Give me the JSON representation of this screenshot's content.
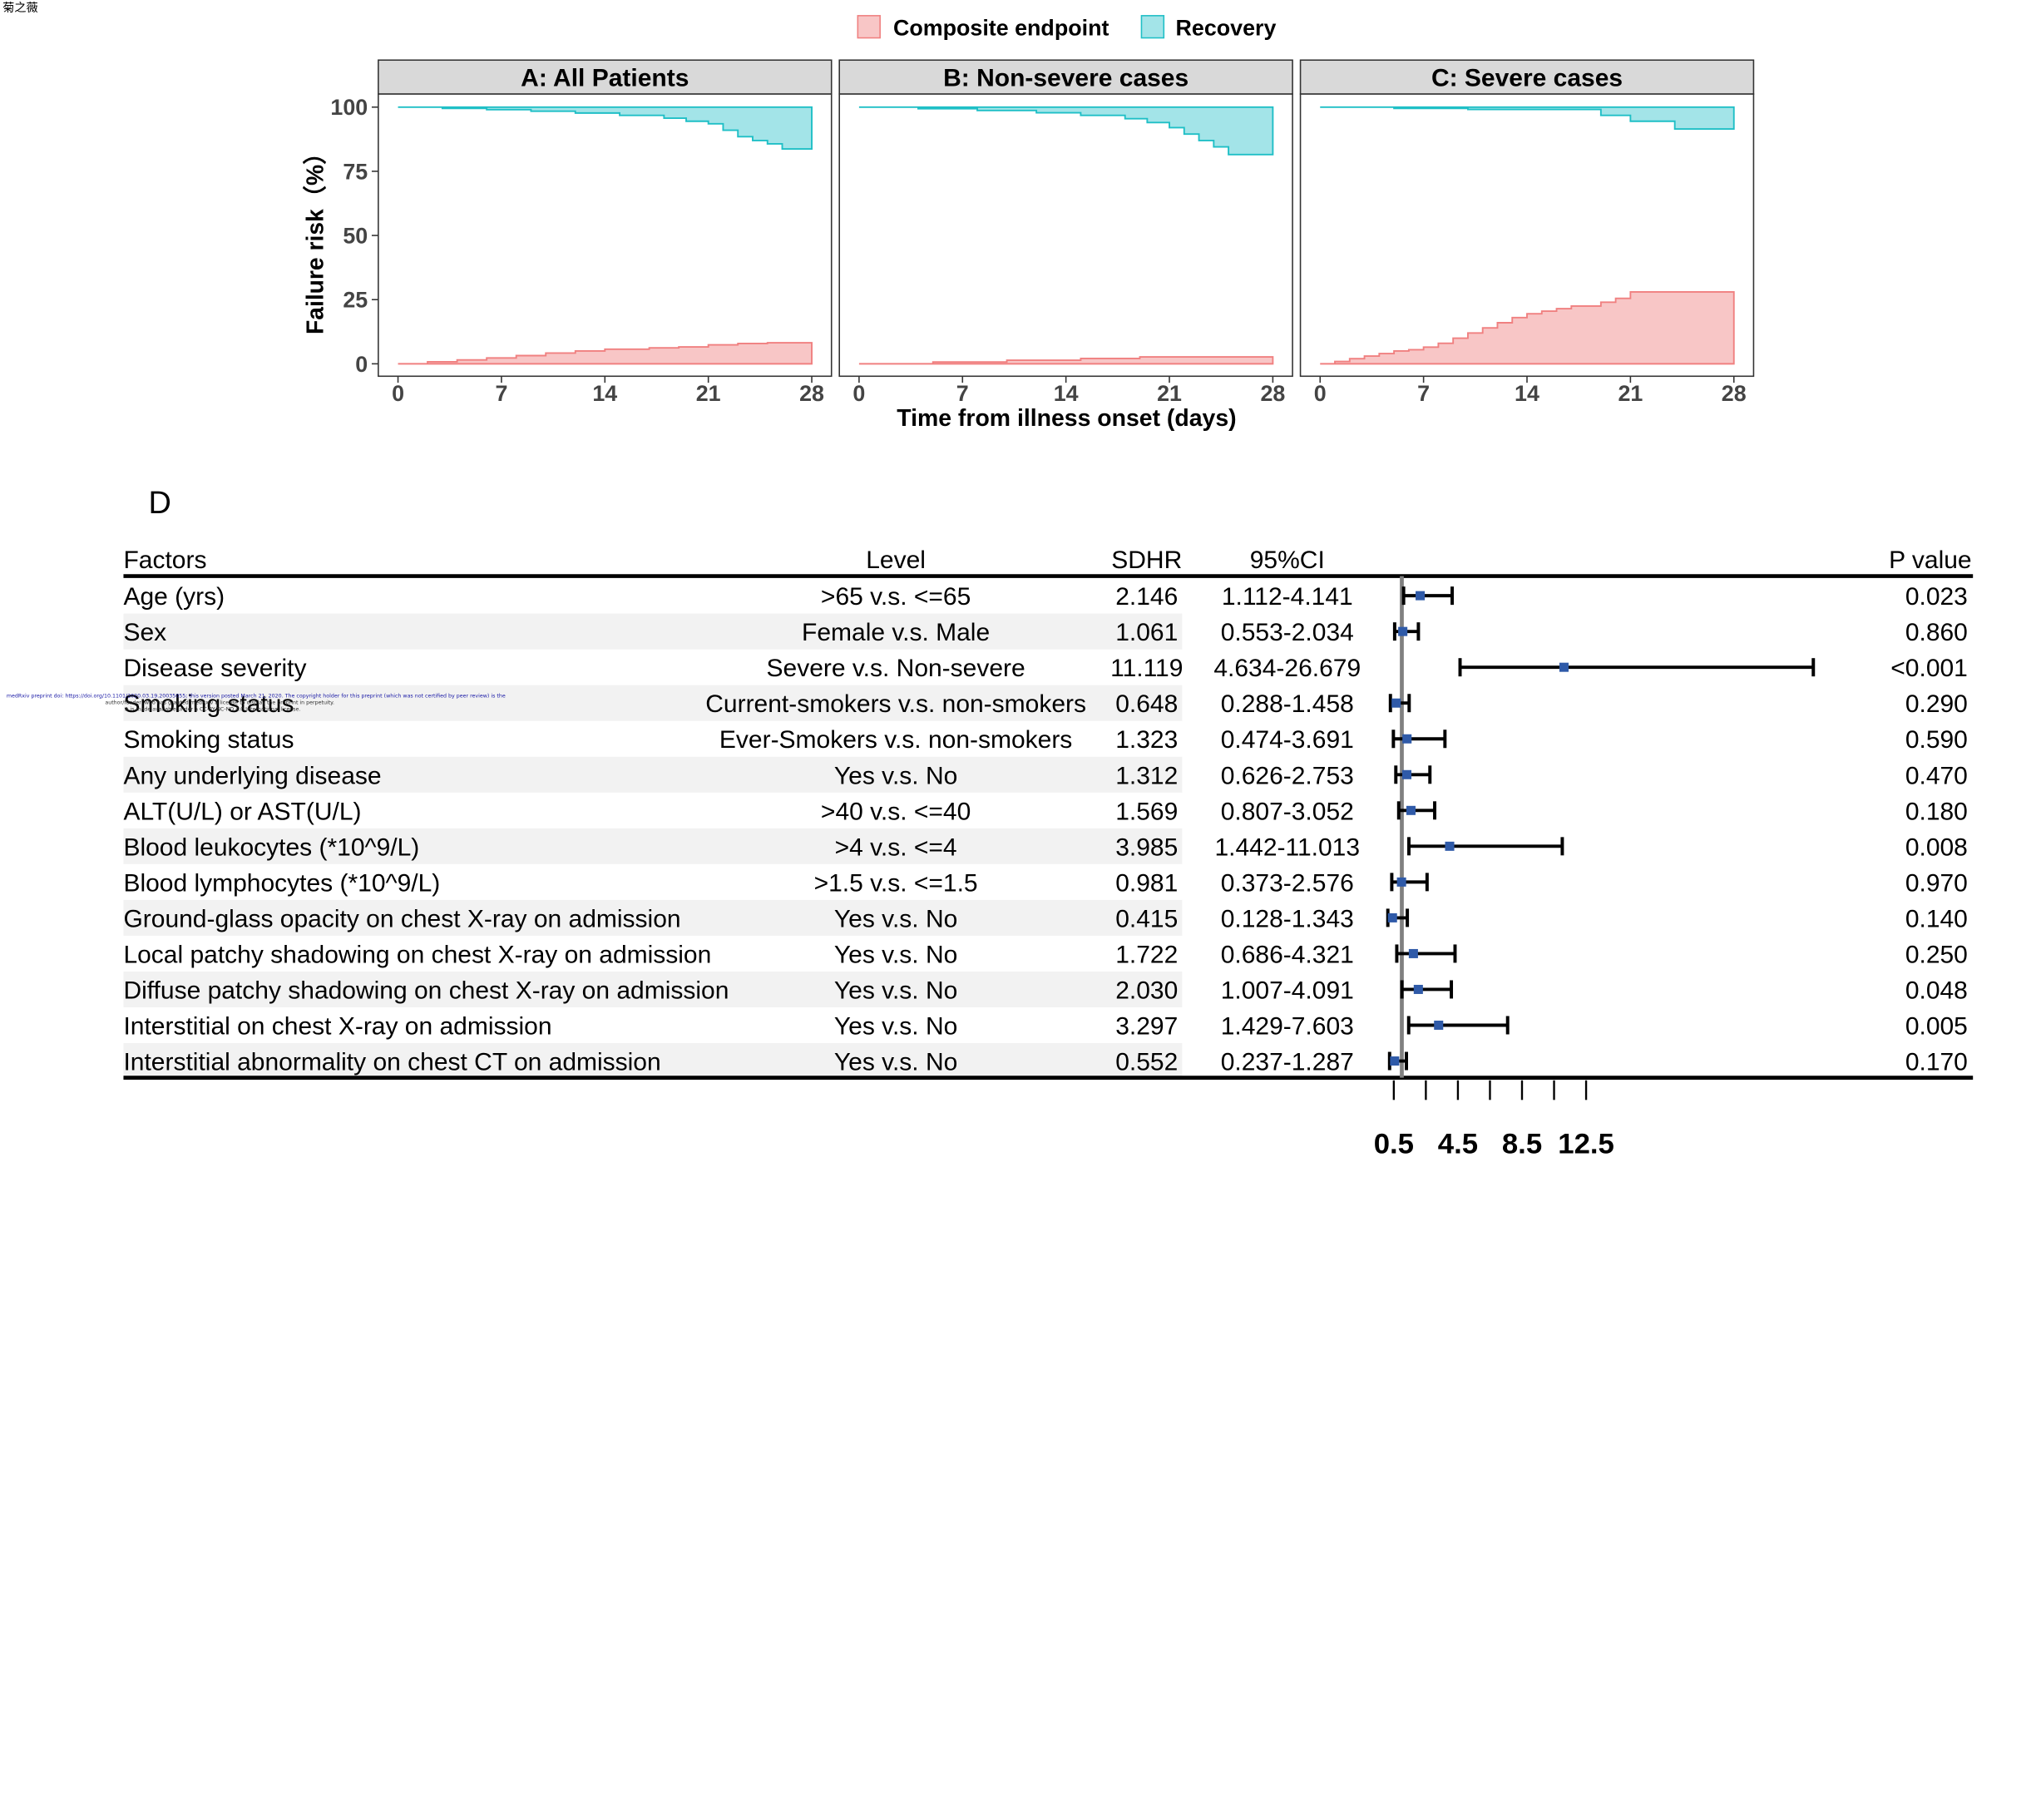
{
  "watermark_corner": "菊之薇",
  "legend": {
    "composite_label": "Composite endpoint",
    "recovery_label": "Recovery",
    "composite_color": "#F8C6C6",
    "composite_stroke": "#F08080",
    "recovery_color": "#A3E4E8",
    "recovery_stroke": "#1FBFC6"
  },
  "chart_data": [
    {
      "type": "area",
      "panel": "A: All Patients",
      "ylabel": "Failure risk（%）",
      "xlabel": "Time from illness onset (days)",
      "ylim": [
        0,
        100
      ],
      "xlim": [
        0,
        28
      ],
      "xticks": [
        0,
        7,
        14,
        21,
        28
      ],
      "yticks": [
        0,
        25,
        50,
        75,
        100
      ],
      "series": [
        {
          "name": "Composite endpoint",
          "x": [
            0,
            2,
            4,
            6,
            8,
            10,
            12,
            14,
            17,
            19,
            21,
            23,
            25,
            28
          ],
          "y": [
            0,
            0.8,
            1.5,
            2.3,
            3.2,
            4.2,
            5.0,
            5.7,
            6.2,
            6.6,
            7.4,
            7.9,
            8.2,
            8.2
          ]
        },
        {
          "name": "Recovery",
          "x": [
            0,
            3,
            6,
            9,
            12,
            15,
            18,
            19.5,
            21,
            22,
            23,
            24,
            25,
            26,
            28
          ],
          "y": [
            0,
            0.5,
            1,
            1.6,
            2.3,
            3.2,
            4.3,
            5.5,
            6.5,
            9.0,
            11.5,
            13.0,
            14.3,
            16.3,
            16.3
          ]
        }
      ]
    },
    {
      "type": "area",
      "panel": "B: Non-severe cases",
      "xlim": [
        0,
        28
      ],
      "xticks": [
        0,
        7,
        14,
        21,
        28
      ],
      "ylim": [
        0,
        100
      ],
      "series": [
        {
          "name": "Composite endpoint",
          "x": [
            0,
            5,
            10,
            15,
            19,
            28
          ],
          "y": [
            0,
            0.7,
            1.4,
            2.1,
            2.7,
            2.7
          ]
        },
        {
          "name": "Recovery",
          "x": [
            0,
            4,
            8,
            12,
            15,
            18,
            19.5,
            21,
            22,
            23,
            24,
            25,
            28
          ],
          "y": [
            0,
            0.6,
            1.3,
            2.2,
            3.2,
            4.5,
            6.0,
            8.0,
            10.5,
            13.0,
            15.5,
            18.5,
            18.5
          ]
        }
      ]
    },
    {
      "type": "area",
      "panel": "C: Severe cases",
      "xlim": [
        0,
        28
      ],
      "xticks": [
        0,
        7,
        14,
        21,
        28
      ],
      "ylim": [
        0,
        100
      ],
      "series": [
        {
          "name": "Composite endpoint",
          "x": [
            0,
            1,
            2,
            3,
            4,
            5,
            6,
            7,
            8,
            9,
            10,
            11,
            12,
            13,
            14,
            15,
            16,
            17,
            18,
            19,
            20,
            21,
            28
          ],
          "y": [
            0,
            0.9,
            2,
            3,
            4,
            5,
            5.5,
            6.5,
            8,
            10,
            12,
            14,
            16,
            18,
            19.5,
            20.5,
            21.5,
            22.5,
            22.5,
            24,
            25.5,
            28,
            28
          ]
        },
        {
          "name": "Recovery",
          "x": [
            0,
            5,
            10,
            19,
            21,
            24,
            28
          ],
          "y": [
            0,
            0.5,
            0.9,
            3.2,
            5.5,
            8.5,
            8.5
          ]
        }
      ]
    },
    {
      "type": "table",
      "panel_letter": "D",
      "columns": {
        "factors": "Factors",
        "level": "Level",
        "sdhr": "SDHR",
        "ci": "95%CI",
        "p": "P value"
      },
      "axis": {
        "tick_labels": [
          "0.5",
          "4.5",
          "8.5",
          "12.5"
        ],
        "ticks": [
          0.5,
          2.5,
          4.5,
          6.5,
          8.5,
          10.5,
          12.5
        ],
        "ref_line": 1,
        "range": [
          0,
          13.5
        ]
      },
      "rows": [
        {
          "factor": "Age (yrs)",
          "level": ">65 v.s. <=65",
          "sdhr": "2.146",
          "ci": "1.112-4.141",
          "p": "0.023",
          "est": 2.146,
          "lo": 1.112,
          "hi": 4.141
        },
        {
          "factor": "Sex",
          "level": "Female v.s. Male",
          "sdhr": "1.061",
          "ci": "0.553-2.034",
          "p": "0.860",
          "est": 1.061,
          "lo": 0.553,
          "hi": 2.034
        },
        {
          "factor": "Disease severity",
          "level": "Severe v.s. Non-severe",
          "sdhr": "11.119",
          "ci": "4.634-26.679",
          "p": "<0.001",
          "est": 11.119,
          "lo": 4.634,
          "hi": 26.679
        },
        {
          "factor": "Smoking status",
          "level": "Current-smokers v.s. non-smokers",
          "sdhr": "0.648",
          "ci": "0.288-1.458",
          "p": "0.290",
          "est": 0.648,
          "lo": 0.288,
          "hi": 1.458
        },
        {
          "factor": "Smoking status",
          "level": "Ever-Smokers v.s. non-smokers",
          "sdhr": "1.323",
          "ci": "0.474-3.691",
          "p": "0.590",
          "est": 1.323,
          "lo": 0.474,
          "hi": 3.691
        },
        {
          "factor": "Any underlying disease",
          "level": "Yes v.s. No",
          "sdhr": "1.312",
          "ci": "0.626-2.753",
          "p": "0.470",
          "est": 1.312,
          "lo": 0.626,
          "hi": 2.753
        },
        {
          "factor": "ALT(U/L) or AST(U/L)",
          "level": ">40 v.s. <=40",
          "sdhr": "1.569",
          "ci": "0.807-3.052",
          "p": "0.180",
          "est": 1.569,
          "lo": 0.807,
          "hi": 3.052
        },
        {
          "factor": "Blood leukocytes (*10^9/L)",
          "level": ">4 v.s. <=4",
          "sdhr": "3.985",
          "ci": "1.442-11.013",
          "p": "0.008",
          "est": 3.985,
          "lo": 1.442,
          "hi": 11.013
        },
        {
          "factor": "Blood lymphocytes (*10^9/L)",
          "level": ">1.5 v.s. <=1.5",
          "sdhr": "0.981",
          "ci": "0.373-2.576",
          "p": "0.970",
          "est": 0.981,
          "lo": 0.373,
          "hi": 2.576
        },
        {
          "factor": "Ground-glass opacity on chest X-ray on admission",
          "level": "Yes v.s. No",
          "sdhr": "0.415",
          "ci": "0.128-1.343",
          "p": "0.140",
          "est": 0.415,
          "lo": 0.128,
          "hi": 1.343
        },
        {
          "factor": "Local patchy shadowing on chest X-ray on admission",
          "level": "Yes v.s. No",
          "sdhr": "1.722",
          "ci": "0.686-4.321",
          "p": "0.250",
          "est": 1.722,
          "lo": 0.686,
          "hi": 4.321
        },
        {
          "factor": "Diffuse patchy shadowing on chest X-ray on admission",
          "level": "Yes v.s. No",
          "sdhr": "2.030",
          "ci": "1.007-4.091",
          "p": "0.048",
          "est": 2.03,
          "lo": 1.007,
          "hi": 4.091
        },
        {
          "factor": "Interstitial on chest X-ray on admission",
          "level": "Yes v.s. No",
          "sdhr": "3.297",
          "ci": "1.429-7.603",
          "p": "0.005",
          "est": 3.297,
          "lo": 1.429,
          "hi": 7.603
        },
        {
          "factor": "Interstitial abnormality on chest CT on admission",
          "level": "Yes v.s. No",
          "sdhr": "0.552",
          "ci": "0.237-1.287",
          "p": "0.170",
          "est": 0.552,
          "lo": 0.237,
          "hi": 1.287
        }
      ]
    }
  ],
  "preprint_note": {
    "line1": "medRxiv preprint doi: https://doi.org/10.1101/2020.03.19.20035055; this version posted March 21, 2020. The copyright holder for this preprint (which was not certified by peer review) is the",
    "line2": "author/funder, who has granted medRxiv a license to display the preprint in perpetuity.",
    "line3": "It is made available under a CC-BY-NC-ND 4.0 International license."
  }
}
